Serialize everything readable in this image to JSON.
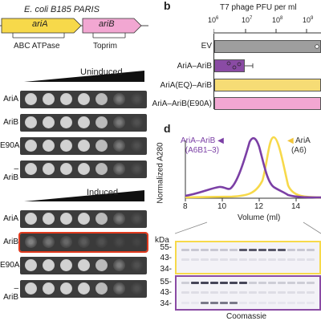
{
  "panel_a": {
    "header": "E. coli B185 PARIS",
    "genes": [
      {
        "name": "ariA",
        "domain": "ABC ATPase"
      },
      {
        "name": "ariB",
        "domain": "Toprim"
      }
    ],
    "uninduced_label": "Uninduced",
    "induced_label": "Induced",
    "rows_uninduced": [
      {
        "label": "AriA",
        "spots": [
          1,
          1,
          1,
          1,
          0.8,
          0.45,
          0.1
        ]
      },
      {
        "label": "AriB",
        "spots": [
          1,
          1,
          1,
          1,
          0.8,
          0.45,
          0.1
        ]
      },
      {
        "label": "E90A)",
        "spots": [
          1,
          1,
          1,
          1,
          0.8,
          0.45,
          0.1
        ]
      },
      {
        "label": "–AriB",
        "spots": [
          1,
          1,
          1,
          1,
          0.8,
          0.45,
          0.1
        ]
      }
    ],
    "rows_induced": [
      {
        "label": "AriA",
        "spots": [
          1,
          1,
          1,
          1,
          0.8,
          0.45,
          0.1
        ]
      },
      {
        "label": "AriB",
        "spots": [
          0.5,
          0.4,
          0.3,
          0.2,
          0.12,
          0.06,
          0.02
        ]
      },
      {
        "label": "E90A)",
        "spots": [
          1,
          1,
          1,
          1,
          0.8,
          0.45,
          0.1
        ]
      },
      {
        "label": "–AriB",
        "spots": [
          1,
          1,
          1,
          1,
          0.8,
          0.45,
          0.1
        ]
      }
    ]
  },
  "panel_b": {
    "letter": "b",
    "title": "T7 phage PFU per ml",
    "ticks": [
      {
        "base": "10",
        "exp": "6"
      },
      {
        "base": "10",
        "exp": "7"
      },
      {
        "base": "10",
        "exp": "8"
      },
      {
        "base": "10",
        "exp": "9"
      }
    ],
    "bars": [
      {
        "label": "EV",
        "color": "#9e9e9e"
      },
      {
        "label": "AriA–AriB",
        "color": "#8a4ba4"
      },
      {
        "label": "AriA(EQ)–AriB",
        "color": "#f6dc75"
      },
      {
        "label": "AriA–AriB(E90A)",
        "color": "#f2a7d2"
      }
    ]
  },
  "panel_d": {
    "letter": "d",
    "legend_complex_name": "AriA–AriB",
    "legend_complex_sub": "(A6B1–3)",
    "legend_ariA_name": "AriA",
    "legend_ariA_sub": "(A6)",
    "ylabel": "Normalized A280",
    "xlabel": "Volume (ml)",
    "xticks": [
      "8",
      "10",
      "12",
      "14"
    ],
    "kda_label": "kDa",
    "gel_top_markers": [
      "55-",
      "43-",
      "34-"
    ],
    "gel_bottom_markers": [
      "55-",
      "43-",
      "34-"
    ],
    "coomassie": "Coomassie",
    "colors": {
      "complex": "#7b3fa5",
      "ariA": "#f7d94a",
      "pink": "#f2a7d2"
    }
  }
}
